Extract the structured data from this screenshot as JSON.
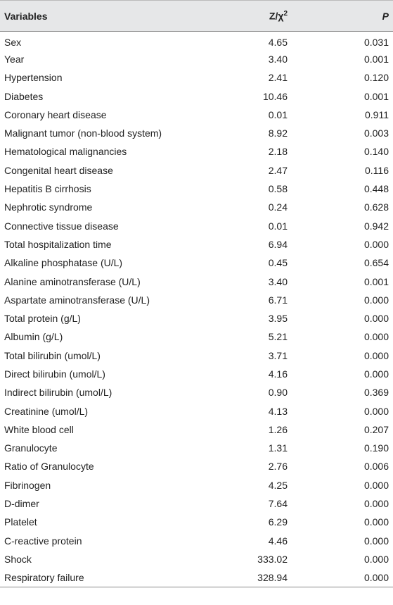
{
  "header": {
    "variables": "Variables",
    "stat": "Z/χ",
    "stat_sup": "2",
    "p": "P"
  },
  "rows": [
    [
      "Sex",
      "4.65",
      "0.031"
    ],
    [
      "Year",
      "3.40",
      "0.001"
    ],
    [
      "Hypertension",
      "2.41",
      "0.120"
    ],
    [
      "Diabetes",
      "10.46",
      "0.001"
    ],
    [
      "Coronary heart disease",
      "0.01",
      "0.911"
    ],
    [
      "Malignant tumor (non-blood system)",
      "8.92",
      "0.003"
    ],
    [
      "Hematological malignancies",
      "2.18",
      "0.140"
    ],
    [
      "Congenital heart disease",
      "2.47",
      "0.116"
    ],
    [
      "Hepatitis B cirrhosis",
      "0.58",
      "0.448"
    ],
    [
      "Nephrotic syndrome",
      "0.24",
      "0.628"
    ],
    [
      "Connective tissue disease",
      "0.01",
      "0.942"
    ],
    [
      "Total hospitalization time",
      "6.94",
      "0.000"
    ],
    [
      "Alkaline phosphatase (U/L)",
      "0.45",
      "0.654"
    ],
    [
      "Alanine aminotransferase (U/L)",
      "3.40",
      "0.001"
    ],
    [
      "Aspartate aminotransferase (U/L)",
      "6.71",
      "0.000"
    ],
    [
      "Total protein (g/L)",
      "3.95",
      "0.000"
    ],
    [
      "Albumin (g/L)",
      "5.21",
      "0.000"
    ],
    [
      "Total bilirubin (umol/L)",
      "3.71",
      "0.000"
    ],
    [
      "Direct bilirubin (umol/L)",
      "4.16",
      "0.000"
    ],
    [
      "Indirect bilirubin (umol/L)",
      "0.90",
      "0.369"
    ],
    [
      "Creatinine (umol/L)",
      "4.13",
      "0.000"
    ],
    [
      "White blood cell",
      "1.26",
      "0.207"
    ],
    [
      "Granulocyte",
      "1.31",
      "0.190"
    ],
    [
      "Ratio of Granulocyte",
      "2.76",
      "0.006"
    ],
    [
      "Fibrinogen",
      "4.25",
      "0.000"
    ],
    [
      "D-dimer",
      "7.64",
      "0.000"
    ],
    [
      "Platelet",
      "6.29",
      "0.000"
    ],
    [
      "C-reactive protein",
      "4.46",
      "0.000"
    ],
    [
      "Shock",
      "333.02",
      "0.000"
    ],
    [
      "Respiratory failure",
      "328.94",
      "0.000"
    ]
  ]
}
